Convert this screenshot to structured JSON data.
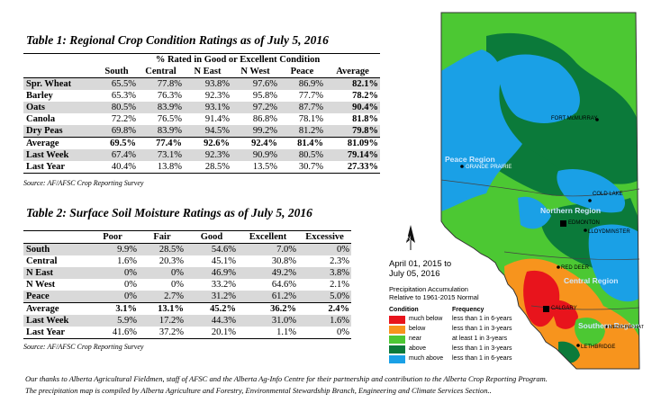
{
  "table1": {
    "title": "Table 1: Regional Crop Condition Ratings as of July 5, 2016",
    "group_header": "% Rated in Good or Excellent Condition",
    "columns": [
      "",
      "South",
      "Central",
      "N East",
      "N West",
      "Peace",
      "Average"
    ],
    "rows": [
      {
        "label": "Spr. Wheat",
        "values": [
          "65.5%",
          "77.8%",
          "93.8%",
          "97.6%",
          "86.9%",
          "82.1%"
        ]
      },
      {
        "label": "Barley",
        "values": [
          "65.3%",
          "76.3%",
          "92.3%",
          "95.8%",
          "77.7%",
          "78.2%"
        ]
      },
      {
        "label": "Oats",
        "values": [
          "80.5%",
          "83.9%",
          "93.1%",
          "97.2%",
          "87.7%",
          "90.4%"
        ]
      },
      {
        "label": "Canola",
        "values": [
          "72.2%",
          "76.5%",
          "91.4%",
          "86.8%",
          "78.1%",
          "81.8%"
        ]
      },
      {
        "label": "Dry Peas",
        "values": [
          "69.8%",
          "83.9%",
          "94.5%",
          "99.2%",
          "81.2%",
          "79.8%"
        ]
      },
      {
        "label": "Average",
        "values": [
          "69.5%",
          "77.4%",
          "92.6%",
          "92.4%",
          "81.4%",
          "81.09%"
        ]
      },
      {
        "label": "Last Week",
        "values": [
          "67.4%",
          "73.1%",
          "92.3%",
          "90.9%",
          "80.5%",
          "79.14%"
        ]
      },
      {
        "label": "Last Year",
        "values": [
          "40.4%",
          "13.8%",
          "28.5%",
          "13.5%",
          "30.7%",
          "27.33%"
        ]
      }
    ],
    "source": "Source: AF/AFSC Crop Reporting Survey"
  },
  "table2": {
    "title": "Table 2: Surface Soil Moisture Ratings as of July 5, 2016",
    "columns": [
      "",
      "Poor",
      "Fair",
      "Good",
      "Excellent",
      "Excessive"
    ],
    "rows": [
      {
        "label": "South",
        "values": [
          "9.9%",
          "28.5%",
          "54.6%",
          "7.0%",
          "0%"
        ]
      },
      {
        "label": "Central",
        "values": [
          "1.6%",
          "20.3%",
          "45.1%",
          "30.8%",
          "2.3%"
        ]
      },
      {
        "label": "N East",
        "values": [
          "0%",
          "0%",
          "46.9%",
          "49.2%",
          "3.8%"
        ]
      },
      {
        "label": "N West",
        "values": [
          "0%",
          "0%",
          "33.2%",
          "64.6%",
          "2.1%"
        ]
      },
      {
        "label": "Peace",
        "values": [
          "0%",
          "2.7%",
          "31.2%",
          "61.2%",
          "5.0%"
        ]
      },
      {
        "label": "Average",
        "values": [
          "3.1%",
          "13.1%",
          "45.2%",
          "36.2%",
          "2.4%"
        ]
      },
      {
        "label": "Last Week",
        "values": [
          "5.9%",
          "17.2%",
          "44.3%",
          "31.0%",
          "1.6%"
        ]
      },
      {
        "label": "Last Year",
        "values": [
          "41.6%",
          "37.2%",
          "20.1%",
          "1.1%",
          "0%"
        ]
      }
    ],
    "source": "Source: AF/AFSC Crop Reporting Survey"
  },
  "footer": {
    "line1": "Our thanks to Alberta Agricultural Fieldmen, staff of AFSC and the Alberta Ag-Info Centre for their partnership and contribution to the Alberta Crop Reporting Program.",
    "line2": "The precipitation map is compiled by Alberta Agriculture and Forestry, Environmental Stewardship Branch, Engineering and Climate Services Section.."
  },
  "map": {
    "north_arrow_label": "N",
    "cities": {
      "fort_mcmurray": "FORT McMURRAY",
      "grande_prairie": "GRANDE PRAIRIE",
      "cold_lake": "COLD LAKE",
      "edmonton": "EDMONTON",
      "lloydminster": "LLOYDMINSTER",
      "red_deer": "RED DEER",
      "calgary": "CALGARY",
      "medicine_hat": "MEDICINE HAT",
      "lethbridge": "LETHBRIDGE"
    },
    "regions": {
      "peace": "Peace Region",
      "northern": "Northern Region",
      "central": "Central Region",
      "southern": "Southern Region"
    },
    "legend": {
      "date_line1": "April 01, 2015 to",
      "date_line2": "July 05, 2016",
      "desc_line1": "Precipitation Accumulation",
      "desc_line2": "Relative to 1961-2015 Normal",
      "col_condition": "Condition",
      "col_frequency": "Frequency",
      "items": [
        {
          "color": "#e8141c",
          "condition": "much below",
          "frequency": "less than 1 in 6-years"
        },
        {
          "color": "#f7941d",
          "condition": "below",
          "frequency": "less than 1 in 3-years"
        },
        {
          "color": "#4cc833",
          "condition": "near",
          "frequency": "at least 1 in 3-years"
        },
        {
          "color": "#0b7a3a",
          "condition": "above",
          "frequency": "less than 1 in 3-years"
        },
        {
          "color": "#1aa0e6",
          "condition": "much above",
          "frequency": "less than 1 in 6-years"
        }
      ]
    }
  }
}
